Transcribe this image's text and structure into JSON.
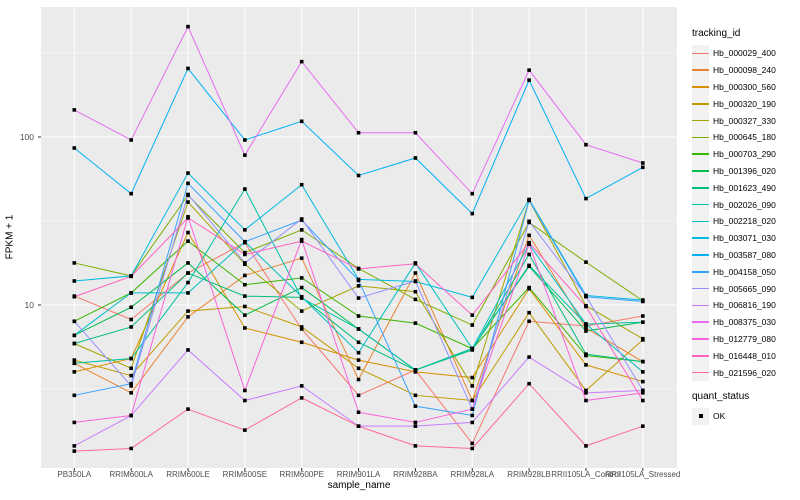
{
  "chart_data": {
    "type": "line",
    "xlabel": "sample_name",
    "ylabel": "FPKM + 1",
    "y_scale": "log10",
    "y_major": [
      10,
      100
    ],
    "y_minor": [
      3.162,
      31.62,
      316.2
    ],
    "grid": true,
    "legend_position": "right",
    "marker": "black-square-point",
    "colors": {
      "panel_bg": "#EBEBEB",
      "grid": "#FFFFFF",
      "point": "#000000",
      "tick_text": "#4D4D4D",
      "title_text": "#000000",
      "legend_key_bg": "#F2F2F2"
    },
    "categories": [
      "PB350LA",
      "RRIM600LA",
      "RRIM600LE",
      "RRIM600SE",
      "RRIM600PE",
      "RRIM901LA",
      "RRIM928BA",
      "RRIM928LA",
      "RRIM928LB",
      "RRII105LA_Control",
      "RRII105LA_Stressed"
    ],
    "series": [
      {
        "name": "Hb_000029_400",
        "color": "#F8766D",
        "values": [
          11.3,
          8.2,
          15.5,
          23.5,
          7.2,
          2.9,
          4.1,
          1.5,
          8.0,
          7.5,
          8.6
        ]
      },
      {
        "name": "Hb_000098_240",
        "color": "#EA8331",
        "values": [
          4.5,
          3.0,
          8.5,
          15.0,
          19.0,
          3.6,
          15.5,
          2.7,
          26.0,
          7.3,
          4.6
        ]
      },
      {
        "name": "Hb_000300_560",
        "color": "#D89000",
        "values": [
          4.0,
          4.8,
          27.0,
          7.3,
          6.0,
          4.7,
          4.0,
          3.7,
          12.5,
          4.4,
          3.5
        ]
      },
      {
        "name": "Hb_000320_190",
        "color": "#C09B00",
        "values": [
          4.7,
          3.8,
          9.2,
          9.8,
          7.4,
          4.2,
          2.9,
          2.7,
          9.0,
          3.1,
          6.2
        ]
      },
      {
        "name": "Hb_000327_330",
        "color": "#A3A500",
        "values": [
          5.9,
          4.2,
          41.0,
          17.5,
          9.2,
          13.0,
          12.0,
          3.3,
          42.0,
          9.9,
          6.3
        ]
      },
      {
        "name": "Hb_000645_180",
        "color": "#7CAE00",
        "values": [
          17.8,
          14.9,
          45.0,
          20.5,
          28.0,
          16.5,
          10.8,
          7.6,
          31.0,
          18.0,
          10.6
        ]
      },
      {
        "name": "Hb_000703_290",
        "color": "#39B600",
        "values": [
          8.0,
          11.8,
          24.0,
          13.2,
          14.5,
          8.6,
          7.8,
          5.5,
          12.7,
          5.0,
          4.6
        ]
      },
      {
        "name": "Hb_001396_020",
        "color": "#00BB4E",
        "values": [
          6.6,
          9.7,
          17.8,
          8.7,
          12.7,
          7.2,
          4.1,
          5.5,
          17.0,
          7.0,
          7.9
        ]
      },
      {
        "name": "Hb_001623_490",
        "color": "#00BF7D",
        "values": [
          5.9,
          7.4,
          15.5,
          11.3,
          11.1,
          6.0,
          4.1,
          5.4,
          20.0,
          5.1,
          4.6
        ]
      },
      {
        "name": "Hb_002026_090",
        "color": "#00C1A3",
        "values": [
          4.5,
          4.8,
          13.6,
          49.0,
          11.0,
          7.2,
          4.1,
          5.5,
          17.2,
          7.7,
          7.9
        ]
      },
      {
        "name": "Hb_002218_020",
        "color": "#00BFC4",
        "values": [
          6.6,
          11.8,
          11.8,
          23.8,
          11.2,
          5.2,
          17.8,
          5.5,
          23.0,
          7.7,
          4.0
        ]
      },
      {
        "name": "Hb_003071_030",
        "color": "#00BAE0",
        "values": [
          13.9,
          14.9,
          61.0,
          28.0,
          52.0,
          14.2,
          13.8,
          11.1,
          42.5,
          11.4,
          10.7
        ]
      },
      {
        "name": "Hb_003587_080",
        "color": "#00B0F6",
        "values": [
          86.0,
          46.0,
          256.0,
          96.0,
          124.0,
          59.0,
          75.0,
          35.0,
          218.0,
          43.0,
          66.0
        ]
      },
      {
        "name": "Hb_004158_050",
        "color": "#35A2FF",
        "values": [
          2.9,
          3.4,
          53.0,
          23.8,
          32.0,
          14.0,
          2.5,
          2.2,
          42.0,
          11.2,
          10.5
        ]
      },
      {
        "name": "Hb_005665_090",
        "color": "#9590FF",
        "values": [
          8.0,
          3.3,
          45.5,
          17.8,
          32.5,
          11.0,
          13.9,
          2.4,
          31.5,
          11.3,
          3.1
        ]
      },
      {
        "name": "Hb_006816_190",
        "color": "#C77CFF",
        "values": [
          1.45,
          2.2,
          5.4,
          2.7,
          3.3,
          1.9,
          1.9,
          2.0,
          4.9,
          3.0,
          3.1
        ]
      },
      {
        "name": "Hb_008375_030",
        "color": "#E76BF3",
        "values": [
          145.0,
          96.0,
          454.0,
          78.0,
          281.0,
          106.0,
          106.0,
          46.0,
          250.0,
          90.0,
          70.0
        ]
      },
      {
        "name": "Hb_012779_080",
        "color": "#FA62DB",
        "values": [
          2.0,
          2.2,
          33.5,
          3.1,
          24.5,
          2.3,
          2.0,
          2.4,
          23.0,
          2.7,
          3.0
        ]
      },
      {
        "name": "Hb_016448_010",
        "color": "#FF61C3",
        "values": [
          11.2,
          14.8,
          33.0,
          20.0,
          24.0,
          16.4,
          17.6,
          8.7,
          23.5,
          9.8,
          2.7
        ]
      },
      {
        "name": "Hb_021596_020",
        "color": "#FF6A98",
        "values": [
          1.35,
          1.4,
          2.4,
          1.8,
          2.8,
          1.9,
          1.45,
          1.4,
          3.4,
          1.45,
          1.9
        ]
      }
    ],
    "legend": {
      "color_title": "tracking_id",
      "shape_title": "quant_status",
      "shape_items": [
        {
          "label": "OK"
        }
      ]
    }
  }
}
